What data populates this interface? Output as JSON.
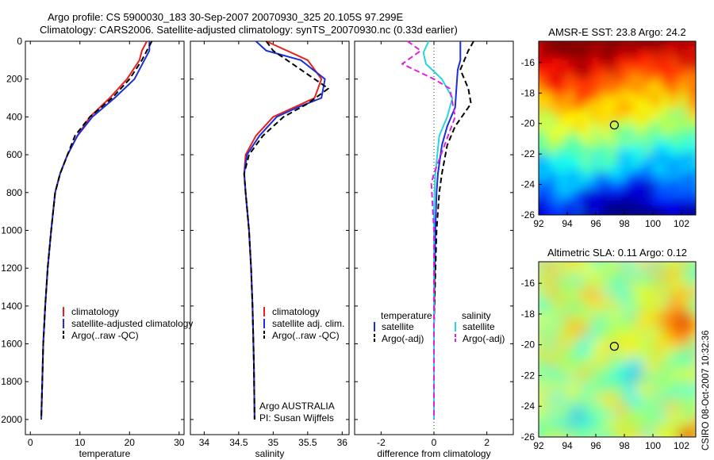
{
  "header": {
    "line1": "Argo profile: CS 5900030_183 30-Sep-2007 20070930_325 20.105S 97.299E",
    "line2": "Climatology: CARS2006. Satellite-adjusted climatology: synTS_20070930.nc (0.33d earlier)"
  },
  "side_text": "CSIRO 08-Oct-2007 10:32:36",
  "colors": {
    "climatology": "#e8201e",
    "satellite": "#1a2fd6",
    "argo": "#000000",
    "sal_sat": "#26d6dc",
    "sal_argo": "#e020e0"
  },
  "chart_data": [
    {
      "type": "line",
      "id": "temperature",
      "xlabel": "temperature",
      "ylabel": "",
      "xlim": [
        -1,
        31
      ],
      "ylim": [
        0,
        2080
      ],
      "y_reversed": true,
      "xticks": [
        0,
        10,
        20,
        30
      ],
      "yticks": [
        0,
        200,
        400,
        600,
        800,
        1000,
        1200,
        1400,
        1600,
        1800,
        2000
      ],
      "legend": [
        "climatology",
        "satellite-adjusted climatology",
        "Argo(..raw -QC)"
      ],
      "series": [
        {
          "name": "climatology",
          "style": "solid",
          "color": "#e8201e",
          "x": [
            23.5,
            22.5,
            22.0,
            19.5,
            16.0,
            12.0,
            9.5,
            7.5,
            6.0,
            5.0,
            4.2,
            3.5,
            3.0,
            2.6,
            2.4,
            2.2
          ],
          "y": [
            0,
            50,
            100,
            200,
            300,
            400,
            500,
            600,
            700,
            800,
            1000,
            1200,
            1400,
            1600,
            1800,
            2000
          ]
        },
        {
          "name": "satellite-adjusted climatology",
          "style": "solid",
          "color": "#1a2fd6",
          "x": [
            24.0,
            24.0,
            23.0,
            21.0,
            17.0,
            12.5,
            9.5,
            7.5,
            6.0,
            5.0,
            4.2,
            3.5,
            3.0,
            2.6,
            2.4,
            2.2
          ],
          "y": [
            0,
            50,
            100,
            200,
            300,
            400,
            500,
            600,
            700,
            800,
            1000,
            1200,
            1400,
            1600,
            1800,
            2000
          ]
        },
        {
          "name": "Argo(..raw -QC)",
          "style": "dash",
          "color": "#000000",
          "x": [
            24.5,
            23.5,
            22.5,
            20.0,
            16.5,
            12.0,
            9.0,
            7.5,
            6.0,
            5.0,
            4.2,
            3.5,
            3.0,
            2.6,
            2.4,
            2.2
          ],
          "y": [
            0,
            50,
            100,
            200,
            300,
            400,
            500,
            600,
            700,
            800,
            1000,
            1200,
            1400,
            1600,
            1800,
            2000
          ]
        }
      ]
    },
    {
      "type": "line",
      "id": "salinity",
      "xlabel": "salinity",
      "ylabel": "",
      "xlim": [
        33.8,
        36.1
      ],
      "ylim": [
        0,
        2080
      ],
      "y_reversed": true,
      "xticks": [
        34,
        34.5,
        35,
        35.5,
        36
      ],
      "xticklabels": [
        "34",
        "34.5",
        "35",
        "35.5",
        "36"
      ],
      "legend": [
        "climatology",
        "satellite adj. clim.",
        "Argo(..raw -QC)"
      ],
      "annotation_lines": [
        "Argo AUSTRALIA",
        "PI: Susan Wijffels"
      ],
      "series": [
        {
          "name": "climatology",
          "style": "solid",
          "color": "#e8201e",
          "x": [
            34.9,
            35.2,
            35.5,
            35.7,
            35.6,
            35.3,
            35.0,
            34.75,
            34.6,
            34.58,
            34.6,
            34.65,
            34.68,
            34.7,
            34.72,
            34.73
          ],
          "y": [
            0,
            50,
            100,
            200,
            300,
            350,
            400,
            500,
            600,
            700,
            800,
            1000,
            1200,
            1400,
            1700,
            2000
          ]
        },
        {
          "name": "satellite adj. clim.",
          "style": "solid",
          "color": "#1a2fd6",
          "x": [
            34.75,
            34.9,
            35.4,
            35.75,
            35.7,
            35.35,
            35.05,
            34.8,
            34.62,
            34.58,
            34.6,
            34.65,
            34.68,
            34.7,
            34.72,
            34.73
          ],
          "y": [
            0,
            50,
            100,
            200,
            300,
            350,
            400,
            500,
            600,
            700,
            800,
            1000,
            1200,
            1400,
            1700,
            2000
          ]
        },
        {
          "name": "Argo(..raw -QC)",
          "style": "dash",
          "color": "#000000",
          "x": [
            34.9,
            35.0,
            35.2,
            35.6,
            35.8,
            35.5,
            35.15,
            34.85,
            34.65,
            34.58,
            34.6,
            34.65,
            34.68,
            34.7,
            34.72,
            34.73
          ],
          "y": [
            0,
            50,
            100,
            200,
            250,
            330,
            400,
            500,
            600,
            700,
            800,
            1000,
            1200,
            1400,
            1700,
            2000
          ]
        }
      ]
    },
    {
      "type": "line",
      "id": "difference",
      "xlabel": "difference from climatology",
      "ylabel": "",
      "xlim": [
        -3,
        3
      ],
      "ylim": [
        0,
        2080
      ],
      "y_reversed": true,
      "xticks": [
        -2,
        0,
        2
      ],
      "legend_left_title": "temperature",
      "legend_right_title": "salinity",
      "legend_left": [
        "satellite",
        "Argo(-adj)"
      ],
      "legend_right": [
        "satellite",
        "Argo(-adj)"
      ],
      "series": [
        {
          "name": "temperature satellite",
          "style": "solid",
          "color": "#1a2fd6",
          "x": [
            1.0,
            1.0,
            0.9,
            0.85,
            0.8,
            0.5,
            0.3,
            0.15,
            0.1,
            0.05,
            0.0,
            0.0
          ],
          "y": [
            0,
            100,
            150,
            250,
            350,
            450,
            550,
            700,
            800,
            1000,
            1500,
            2000
          ]
        },
        {
          "name": "temperature Argo(-adj)",
          "style": "dash",
          "color": "#000000",
          "x": [
            1.5,
            1.3,
            1.0,
            1.3,
            1.4,
            0.8,
            0.5,
            0.3,
            0.2,
            0.1,
            0.0,
            0.0
          ],
          "y": [
            0,
            50,
            150,
            250,
            330,
            450,
            550,
            700,
            800,
            1000,
            1500,
            2000
          ]
        },
        {
          "name": "salinity satellite",
          "style": "solid",
          "color": "#26d6dc",
          "x": [
            -0.2,
            -0.4,
            -0.3,
            0.3,
            0.7,
            0.5,
            0.2,
            0.05,
            0.0,
            0.0,
            0.0
          ],
          "y": [
            0,
            60,
            120,
            200,
            300,
            400,
            500,
            700,
            900,
            1500,
            2000
          ]
        },
        {
          "name": "salinity Argo(-adj)",
          "style": "dash",
          "color": "#e020e0",
          "x": [
            -1.0,
            -0.5,
            -1.2,
            0.0,
            0.6,
            0.8,
            0.4,
            0.0,
            -0.1,
            0.0,
            0.0
          ],
          "y": [
            0,
            50,
            120,
            200,
            250,
            400,
            550,
            700,
            750,
            1000,
            2000
          ]
        }
      ]
    },
    {
      "type": "heatmap",
      "id": "sst-map",
      "title": "AMSR-E SST: 23.8 Argo: 24.2",
      "xlim": [
        92,
        103
      ],
      "ylim": [
        -26,
        -14.6
      ],
      "xticks": [
        92,
        94,
        96,
        98,
        100,
        102
      ],
      "yticks": [
        -16,
        -18,
        -20,
        -22,
        -24,
        -26
      ],
      "marker": {
        "lon": 97.3,
        "lat": -20.1
      }
    },
    {
      "type": "heatmap",
      "id": "sla-map",
      "title": "Altimetric SLA: 0.11 Argo: 0.12",
      "xlim": [
        92,
        103
      ],
      "ylim": [
        -26,
        -14.6
      ],
      "xticks": [
        92,
        94,
        96,
        98,
        100,
        102
      ],
      "yticks": [
        -16,
        -18,
        -20,
        -22,
        -24,
        -26
      ],
      "marker": {
        "lon": 97.3,
        "lat": -20.1
      }
    }
  ]
}
